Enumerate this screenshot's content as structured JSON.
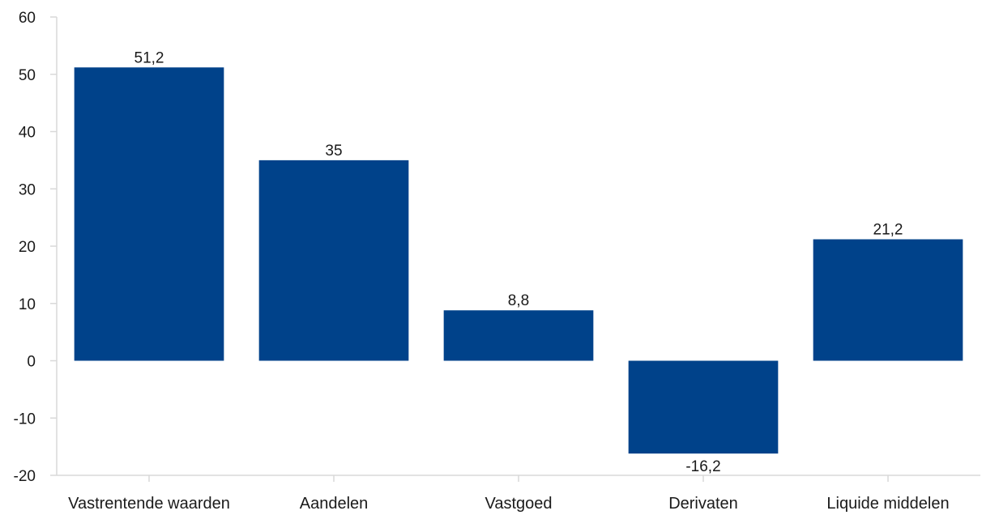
{
  "chart_data": {
    "type": "bar",
    "categories": [
      "Vastrentende waarden",
      "Aandelen",
      "Vastgoed",
      "Derivaten",
      "Liquide middelen"
    ],
    "values": [
      51.2,
      35,
      8.8,
      -16.2,
      21.2
    ],
    "data_labels": [
      "51,2",
      "35",
      "8,8",
      "-16,2",
      "21,2"
    ],
    "title": "",
    "xlabel": "",
    "ylabel": "",
    "ylim": [
      -20,
      60
    ],
    "yticks": [
      -20,
      -10,
      0,
      10,
      20,
      30,
      40,
      50,
      60
    ],
    "grid": false,
    "legend": "none",
    "bar_color": "#00428a"
  }
}
